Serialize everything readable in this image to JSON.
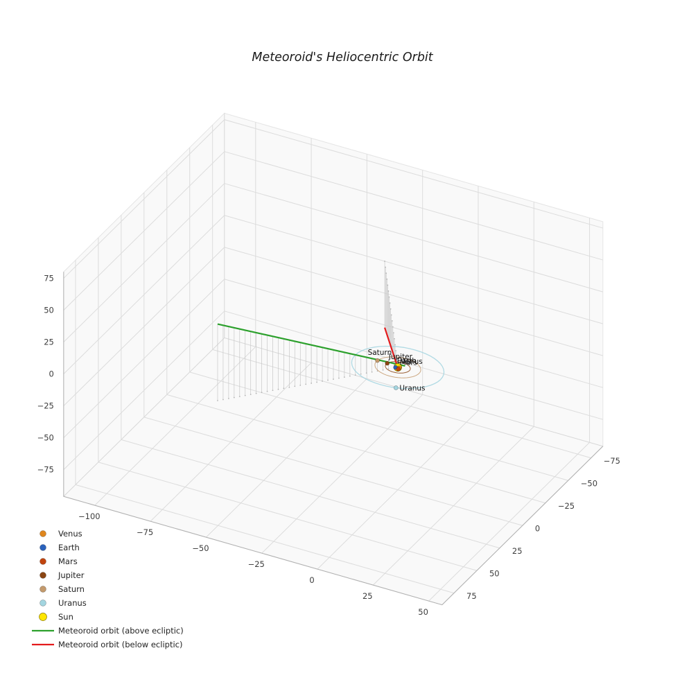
{
  "chart_data": {
    "type": "line",
    "projection_style": "3d",
    "title": "Meteoroid's Heliocentric Orbit",
    "axes": {
      "x": {
        "tick_values": [
          -100,
          -75,
          -50,
          -25,
          0,
          25,
          50
        ],
        "tick_labels": [
          "−100",
          "−75",
          "−50",
          "−25",
          "0",
          "25",
          "50"
        ],
        "range": [
          -114,
          56
        ]
      },
      "y": {
        "tick_values": [
          -75,
          -50,
          -25,
          0,
          25,
          50,
          75
        ],
        "tick_labels": [
          "−75",
          "−50",
          "−25",
          "0",
          "25",
          "50",
          "75"
        ],
        "range": [
          -88,
          88
        ]
      },
      "z": {
        "tick_values": [
          -75,
          -50,
          -25,
          0,
          25,
          50,
          75
        ],
        "tick_labels": [
          "−75",
          "−50",
          "−25",
          "0",
          "25",
          "50",
          "75"
        ],
        "range": [
          -96,
          80
        ]
      }
    },
    "grid": true,
    "legend_position": "lower-left",
    "sun": {
      "name": "Sun",
      "color": "#ffe600",
      "edge_color": "#8a7a00",
      "position_au": [
        0,
        0,
        0
      ]
    },
    "planets": [
      {
        "name": "Venus",
        "color": "#df861d",
        "orbit_radius_au": 0.72,
        "angle_deg": 10,
        "label_offset": [
          2,
          -6
        ]
      },
      {
        "name": "Earth",
        "color": "#2a62bc",
        "orbit_radius_au": 1.0,
        "angle_deg": 140,
        "label_offset": [
          2,
          -6
        ]
      },
      {
        "name": "Mars",
        "color": "#c1440e",
        "orbit_radius_au": 1.52,
        "angle_deg": 60,
        "label_offset": [
          2,
          -6
        ]
      },
      {
        "name": "Jupiter",
        "color": "#8b4513",
        "orbit_radius_au": 5.2,
        "angle_deg": 190,
        "label_offset": [
          2,
          -6
        ]
      },
      {
        "name": "Saturn",
        "color": "#c49a6c",
        "orbit_radius_au": 9.54,
        "angle_deg": 185,
        "label_offset": [
          -14,
          -8
        ]
      },
      {
        "name": "Uranus",
        "color": "#a3d5e0",
        "orbit_radius_au": 19.19,
        "angle_deg": 70,
        "label_offset": [
          5,
          4
        ]
      }
    ],
    "meteoroid_orbit": {
      "above_ecliptic": {
        "label": "Meteoroid orbit (above ecliptic)",
        "color": "#2ca02c",
        "start_au": [
          2,
          -3,
          0
        ],
        "end_au": [
          -51,
          73,
          60
        ],
        "stems": 34
      },
      "below_ecliptic": {
        "label": "Meteoroid orbit (below ecliptic)",
        "color": "#e31a1c",
        "start_au": [
          0.5,
          1,
          0
        ],
        "end_au": [
          -42,
          -88,
          -52
        ],
        "stems": 18
      }
    },
    "legend": {
      "items": [
        {
          "label": "Venus",
          "marker": "dot",
          "color": "#df861d"
        },
        {
          "label": "Earth",
          "marker": "dot",
          "color": "#2a62bc"
        },
        {
          "label": "Mars",
          "marker": "dot",
          "color": "#c1440e"
        },
        {
          "label": "Jupiter",
          "marker": "dot",
          "color": "#8b4513"
        },
        {
          "label": "Saturn",
          "marker": "dot",
          "color": "#c49a6c"
        },
        {
          "label": "Uranus",
          "marker": "dot",
          "color": "#a3d5e0"
        },
        {
          "label": "Sun",
          "marker": "dot",
          "color": "#ffe600",
          "edge_color": "#8a7a00"
        },
        {
          "label": "Meteoroid orbit (above ecliptic)",
          "marker": "line",
          "color": "#2ca02c"
        },
        {
          "label": "Meteoroid orbit (below ecliptic)",
          "marker": "line",
          "color": "#e31a1c"
        }
      ]
    },
    "colors": {
      "grid": "#dcdcdc",
      "pane_edge": "#cfcfcf",
      "pane_fill": "#f5f5f5",
      "axis_edge": "#b0b0b0",
      "stem": "#c8c8c8",
      "projection_dot": "#b5b5b5",
      "tick_text": "#3c3c3c",
      "label_text": "#111111",
      "title_text": "#1a1a1a"
    }
  }
}
